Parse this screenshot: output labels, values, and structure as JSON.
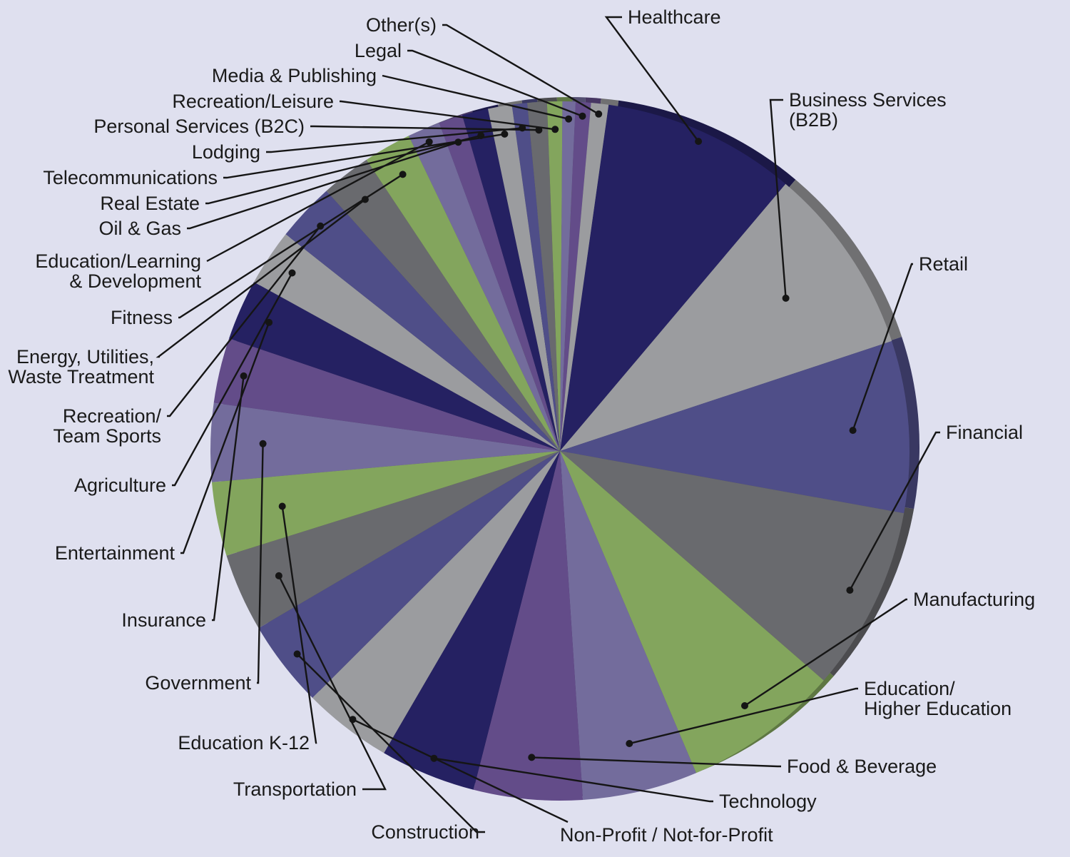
{
  "chart_data": {
    "type": "pie",
    "title": "",
    "categories": [
      "Healthcare",
      "Business Services (B2B)",
      "Retail",
      "Financial",
      "Manufacturing",
      "Education/ Higher Education",
      "Food & Beverage",
      "Technology",
      "Non-Profit / Not-for-Profit",
      "Construction",
      "Transportation",
      "Education K-12",
      "Government",
      "Insurance",
      "Entertainment",
      "Agriculture",
      "Recreation/ Team Sports",
      "Energy, Utilities, Waste Treatment",
      "Fitness",
      "Education/Learning & Development",
      "Oil & Gas",
      "Real Estate",
      "Telecommunications",
      "Lodging",
      "Personal Services (B2C)",
      "Recreation/Leisure",
      "Media & Publishing",
      "Legal",
      "Other(s)"
    ],
    "series": [
      {
        "values": [
          8.9,
          8.7,
          7.9,
          8.5,
          7.2,
          5.3,
          5.0,
          4.4,
          4.1,
          4.0,
          3.6,
          3.4,
          3.6,
          3.0,
          2.8,
          2.6,
          2.7,
          2.3,
          2.2,
          1.5,
          1.1,
          1.2,
          1.1,
          0.7,
          0.9,
          0.7,
          0.6,
          0.7,
          0.8
        ]
      }
    ],
    "start_angle_deg": 8,
    "direction": "clockwise",
    "colors": [
      "#252162",
      "#9b9c9f",
      "#4f4e88",
      "#696a6e",
      "#83a55d",
      "#736c9c",
      "#634c89"
    ],
    "slice_colors": [
      "#252162",
      "#9b9c9f",
      "#4f4e88",
      "#696a6e",
      "#83a55d",
      "#736c9c",
      "#634c89",
      "#252162",
      "#9b9c9f",
      "#4f4e88",
      "#696a6e",
      "#83a55d",
      "#736c9c",
      "#634c89",
      "#252162",
      "#9b9c9f",
      "#4f4e88",
      "#696a6e",
      "#83a55d",
      "#736c9c",
      "#634c89",
      "#252162",
      "#9b9c9f",
      "#4f4e88",
      "#696a6e",
      "#83a55d",
      "#736c9c",
      "#634c89",
      "#9b9c9f"
    ],
    "labels": [
      {
        "lines": [
          "Healthcare"
        ]
      },
      {
        "lines": [
          "Business Services",
          "(B2B)"
        ]
      },
      {
        "lines": [
          "Retail"
        ]
      },
      {
        "lines": [
          "Financial"
        ]
      },
      {
        "lines": [
          "Manufacturing"
        ]
      },
      {
        "lines": [
          "Education/",
          "Higher Education"
        ]
      },
      {
        "lines": [
          "Food & Beverage"
        ]
      },
      {
        "lines": [
          "Technology"
        ]
      },
      {
        "lines": [
          "Non-Profit / Not-for-Profit"
        ]
      },
      {
        "lines": [
          "Construction"
        ]
      },
      {
        "lines": [
          "Transportation"
        ]
      },
      {
        "lines": [
          "Education K-12"
        ]
      },
      {
        "lines": [
          "Government"
        ]
      },
      {
        "lines": [
          "Insurance"
        ]
      },
      {
        "lines": [
          "Entertainment"
        ]
      },
      {
        "lines": [
          "Agriculture"
        ]
      },
      {
        "lines": [
          "Recreation/",
          "Team Sports"
        ]
      },
      {
        "lines": [
          "Energy, Utilities,",
          "Waste Treatment"
        ]
      },
      {
        "lines": [
          "Fitness"
        ]
      },
      {
        "lines": [
          "Education/Learning",
          "& Development"
        ]
      },
      {
        "lines": [
          "Oil & Gas"
        ]
      },
      {
        "lines": [
          "Real Estate"
        ]
      },
      {
        "lines": [
          "Telecommunications"
        ]
      },
      {
        "lines": [
          "Lodging"
        ]
      },
      {
        "lines": [
          "Personal Services (B2C)"
        ]
      },
      {
        "lines": [
          "Recreation/Leisure"
        ]
      },
      {
        "lines": [
          "Media & Publishing"
        ]
      },
      {
        "lines": [
          "Legal"
        ]
      },
      {
        "lines": [
          "Other(s)"
        ]
      }
    ],
    "legend": "none",
    "grid": false
  }
}
